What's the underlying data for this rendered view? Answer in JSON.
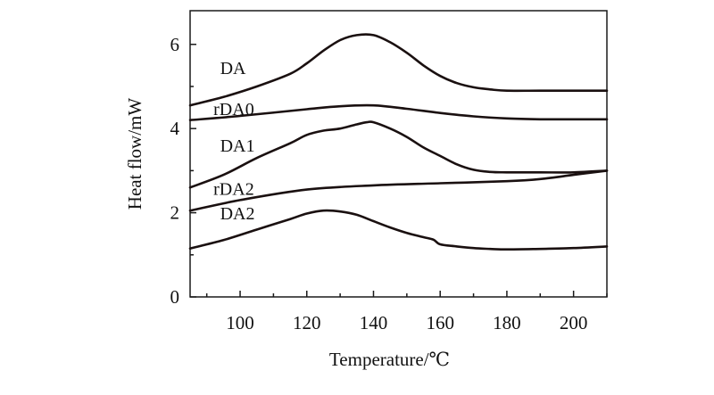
{
  "chart_data": {
    "type": "line",
    "title": "",
    "xlabel": "Temperature/℃",
    "ylabel": "Heat flow/mW",
    "xlim": [
      85,
      210
    ],
    "ylim": [
      0,
      6.8
    ],
    "xticks": [
      100,
      120,
      140,
      160,
      180,
      200
    ],
    "yticks": [
      0,
      2,
      4,
      6
    ],
    "grid": false,
    "legend": "none",
    "line_color": "#1a1010",
    "series": [
      {
        "name": "DA",
        "x": [
          85,
          95,
          105,
          115,
          120,
          125,
          130,
          135,
          140,
          145,
          150,
          155,
          160,
          165,
          170,
          175,
          180,
          190,
          200,
          210
        ],
        "y": [
          4.55,
          4.75,
          5.0,
          5.3,
          5.55,
          5.85,
          6.1,
          6.22,
          6.22,
          6.05,
          5.8,
          5.5,
          5.25,
          5.08,
          4.98,
          4.93,
          4.9,
          4.9,
          4.9,
          4.9
        ]
      },
      {
        "name": "rDA0",
        "x": [
          85,
          100,
          120,
          130,
          140,
          150,
          160,
          170,
          180,
          190,
          200,
          210
        ],
        "y": [
          4.2,
          4.3,
          4.46,
          4.53,
          4.55,
          4.47,
          4.37,
          4.29,
          4.24,
          4.22,
          4.22,
          4.22
        ]
      },
      {
        "name": "DA1",
        "x": [
          85,
          95,
          105,
          115,
          120,
          125,
          130,
          135,
          138,
          140,
          145,
          150,
          155,
          160,
          165,
          170,
          175,
          180,
          190,
          200,
          210
        ],
        "y": [
          2.6,
          2.9,
          3.3,
          3.65,
          3.85,
          3.95,
          4.0,
          4.1,
          4.15,
          4.15,
          4.0,
          3.8,
          3.55,
          3.35,
          3.15,
          3.02,
          2.97,
          2.96,
          2.96,
          2.96,
          3.0
        ]
      },
      {
        "name": "rDA2",
        "x": [
          85,
          100,
          120,
          140,
          160,
          180,
          190,
          200,
          210
        ],
        "y": [
          2.05,
          2.3,
          2.55,
          2.65,
          2.7,
          2.75,
          2.8,
          2.9,
          3.0
        ]
      },
      {
        "name": "DA2",
        "x": [
          85,
          95,
          105,
          115,
          120,
          125,
          130,
          135,
          140,
          145,
          150,
          155,
          158,
          160,
          165,
          170,
          175,
          180,
          190,
          200,
          210
        ],
        "y": [
          1.15,
          1.35,
          1.6,
          1.85,
          1.98,
          2.05,
          2.03,
          1.95,
          1.8,
          1.65,
          1.52,
          1.42,
          1.36,
          1.25,
          1.2,
          1.16,
          1.14,
          1.13,
          1.14,
          1.16,
          1.2
        ]
      }
    ],
    "annotations": [
      {
        "text": "DA",
        "x": 94,
        "y": 5.3
      },
      {
        "text": "rDA0",
        "x": 92,
        "y": 4.32
      },
      {
        "text": "DA1",
        "x": 94,
        "y": 3.45
      },
      {
        "text": "rDA2",
        "x": 92,
        "y": 2.43
      },
      {
        "text": "DA2",
        "x": 94,
        "y": 1.84
      }
    ]
  }
}
